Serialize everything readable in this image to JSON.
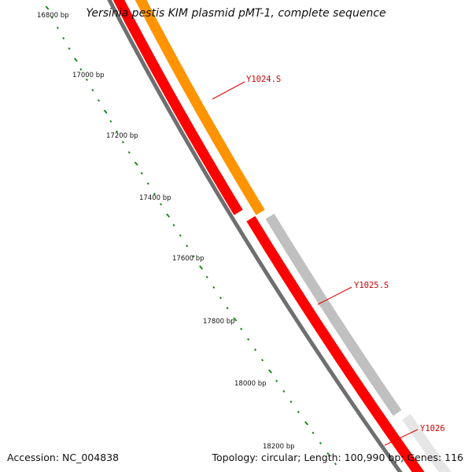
{
  "title": "Yersinia pestis KIM plasmid pMT-1, complete sequence",
  "accession": "Accession: NC_004838",
  "topology": "Topology: circular; Length: 100,990 bp; Genes: 116",
  "ruler": {
    "color": "#1a8a1a",
    "labels": [
      "16800 bp",
      "17000 bp",
      "17200 bp",
      "17400 bp",
      "17600 bp",
      "17800 bp",
      "18000 bp",
      "18200 bp"
    ]
  },
  "genes": [
    {
      "label": "Y1024.S",
      "color": "#ff9400",
      "label_color": "#cc0000"
    },
    {
      "label": "Y1025.S",
      "color": "#c0c0c0",
      "label_color": "#cc0000"
    },
    {
      "label": "Y1026",
      "color": "#e6e6e6",
      "label_color": "#cc0000"
    }
  ],
  "strand_colors": {
    "cds": "#ff0000",
    "backbone": "#7a7a7a"
  }
}
